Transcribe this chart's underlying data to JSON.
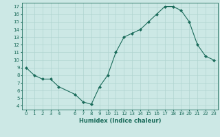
{
  "x": [
    0,
    1,
    2,
    3,
    4,
    6,
    7,
    8,
    9,
    10,
    11,
    12,
    13,
    14,
    15,
    16,
    17,
    18,
    19,
    20,
    21,
    22,
    23
  ],
  "y": [
    9,
    8,
    7.5,
    7.5,
    6.5,
    5.5,
    4.5,
    4.2,
    6.5,
    8,
    11,
    13,
    13.5,
    14,
    15,
    16,
    17,
    17,
    16.5,
    15,
    12,
    10.5,
    10
  ],
  "line_color": "#1a6b5a",
  "marker": "D",
  "marker_size": 2.0,
  "bg_color": "#cce8e5",
  "grid_color": "#b0d4d0",
  "xlabel": "Humidex (Indice chaleur)",
  "xlim": [
    -0.5,
    23.5
  ],
  "ylim": [
    3.5,
    17.5
  ],
  "yticks": [
    4,
    5,
    6,
    7,
    8,
    9,
    10,
    11,
    12,
    13,
    14,
    15,
    16,
    17
  ],
  "xticks": [
    0,
    1,
    2,
    3,
    4,
    6,
    7,
    8,
    9,
    10,
    11,
    12,
    13,
    14,
    15,
    16,
    17,
    18,
    19,
    20,
    21,
    22,
    23
  ],
  "xtick_labels": [
    "0",
    "1",
    "2",
    "3",
    "4",
    "6",
    "7",
    "8",
    "9",
    "10",
    "11",
    "12",
    "13",
    "14",
    "15",
    "16",
    "17",
    "18",
    "19",
    "20",
    "21",
    "22",
    "23"
  ],
  "tick_fontsize": 5.0,
  "xlabel_fontsize": 6.0
}
